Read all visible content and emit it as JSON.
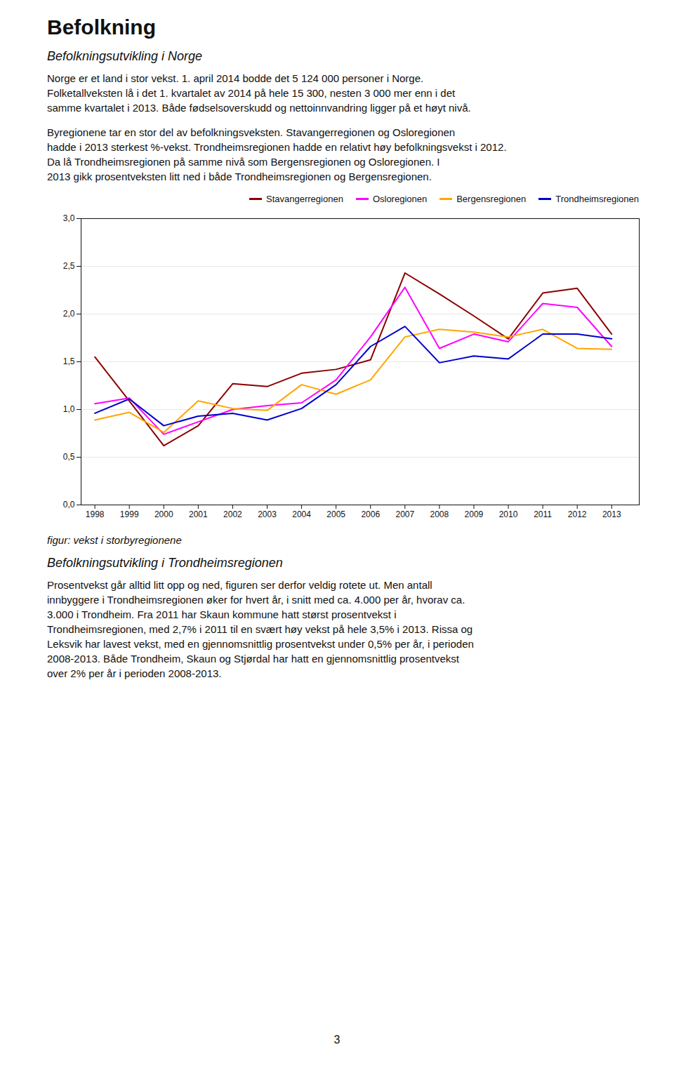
{
  "title": "Befolkning",
  "subtitle": "Befolkningsutvikling i Norge",
  "paragraphs": [
    [
      "Norge er et land i stor vekst. 1. april 2014 bodde det 5 124 000 personer i Norge.",
      "Folketallveksten lå i det 1. kvartalet av 2014 på hele 15 300, nesten 3 000 mer enn i det",
      "samme kvartalet i 2013. Både fødselsoverskudd og nettoinnvandring ligger på et høyt nivå."
    ],
    [
      "Byregionene tar en stor del av befolkningsveksten. Stavangerregionen og Osloregionen",
      "hadde i 2013 sterkest %-vekst. Trondheimsregionen hadde en relativt høy befolkningsvekst i 2012.",
      "Da lå Trondheimsregionen på samme nivå som Bergensregionen og Osloregionen. I",
      "2013 gikk prosentveksten litt ned i både Trondheimsregionen og Bergensregionen."
    ]
  ],
  "chart_data": {
    "type": "line",
    "caption": "figur: vekst i storbyregionene",
    "x": [
      1998,
      1999,
      2000,
      2001,
      2002,
      2003,
      2004,
      2005,
      2006,
      2007,
      2008,
      2009,
      2010,
      2011,
      2012,
      2013
    ],
    "series": [
      {
        "name": "Stavangerregionen",
        "color": "#8B0000",
        "values": [
          1.55,
          1.09,
          0.62,
          0.83,
          1.27,
          1.24,
          1.38,
          1.42,
          1.52,
          2.43,
          2.21,
          1.98,
          1.74,
          2.22,
          2.27,
          1.79
        ]
      },
      {
        "name": "Osloregionen",
        "color": "#FF00FF",
        "values": [
          1.06,
          1.12,
          0.74,
          0.87,
          1.0,
          1.04,
          1.07,
          1.31,
          1.76,
          2.28,
          1.64,
          1.79,
          1.71,
          2.11,
          2.07,
          1.66
        ]
      },
      {
        "name": "Bergensregionen",
        "color": "#FFA500",
        "values": [
          0.89,
          0.97,
          0.76,
          1.09,
          1.01,
          0.99,
          1.26,
          1.16,
          1.31,
          1.76,
          1.84,
          1.81,
          1.76,
          1.84,
          1.64,
          1.63
        ]
      },
      {
        "name": "Trondheimsregionen",
        "color": "#0000CD",
        "values": [
          0.96,
          1.11,
          0.83,
          0.93,
          0.96,
          0.89,
          1.01,
          1.26,
          1.66,
          1.87,
          1.49,
          1.56,
          1.53,
          1.79,
          1.79,
          1.74
        ]
      }
    ],
    "xlim": [
      1997.6,
      2013.8
    ],
    "xticks": [
      1998,
      1999,
      2000,
      2001,
      2002,
      2003,
      2004,
      2005,
      2006,
      2007,
      2008,
      2009,
      2010,
      2011,
      2012,
      2013
    ],
    "ylim": [
      0.0,
      3.0
    ],
    "yticks": [
      {
        "value": 0.0,
        "label": "0,0"
      },
      {
        "value": 0.5,
        "label": "0,5"
      },
      {
        "value": 1.0,
        "label": "1,0"
      },
      {
        "value": 1.5,
        "label": "1,5"
      },
      {
        "value": 2.0,
        "label": "2,0"
      },
      {
        "value": 2.5,
        "label": "2,5"
      },
      {
        "value": 3.0,
        "label": "3,0"
      }
    ],
    "grid": true,
    "legend": "top-right"
  },
  "subtitle2": "Befolkningsutvikling i Trondheimsregionen",
  "paragraphs2": [
    [
      "Prosentvekst går alltid litt opp og ned, figuren ser derfor veldig rotete ut. Men antall",
      "innbyggere i Trondheimsregionen øker for hvert år, i snitt med ca. 4.000 per år, hvorav ca.",
      "3.000 i Trondheim. Fra 2011 har Skaun kommune hatt størst prosentvekst i",
      "Trondheimsregionen, med 2,7% i 2011 til en svært høy vekst på hele 3,5% i 2013. Rissa og",
      "Leksvik har lavest vekst, med en gjennomsnittlig prosentvekst under 0,5% per år, i perioden",
      "2008-2013. Både Trondheim, Skaun og Stjørdal har hatt en gjennomsnittlig prosentvekst",
      "over 2% per år i perioden 2008-2013."
    ]
  ],
  "page_number": 3
}
